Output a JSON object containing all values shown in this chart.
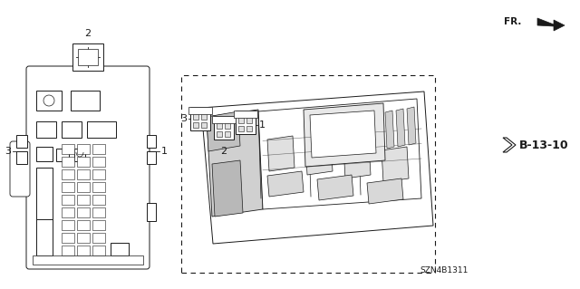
{
  "bg_color": "#ffffff",
  "part_number": "SZN4B1311",
  "fr_label": "FR.",
  "b_label": "B-13-10",
  "label_fontsize": 8,
  "dark": "#1a1a1a"
}
